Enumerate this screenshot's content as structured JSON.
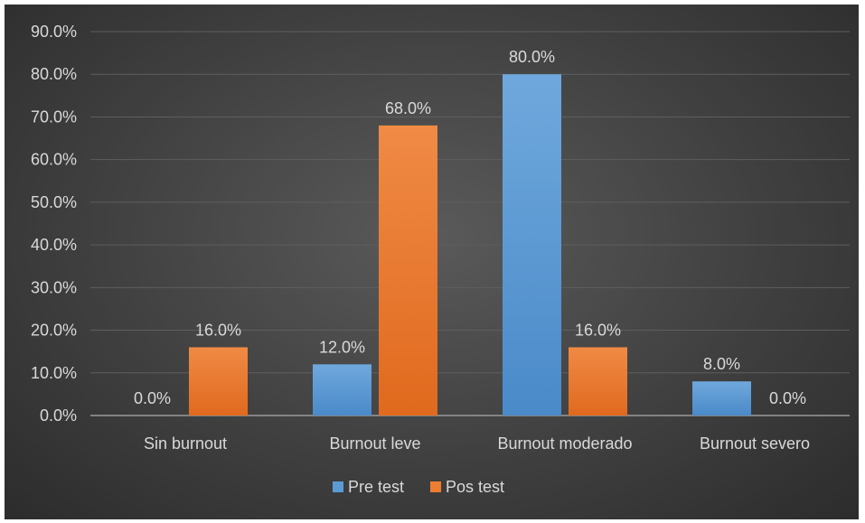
{
  "chart_data": {
    "type": "bar",
    "categories": [
      "Sin burnout",
      "Burnout leve",
      "Burnout moderado",
      "Burnout severo"
    ],
    "series": [
      {
        "name": "Pre test",
        "values": [
          0.0,
          12.0,
          80.0,
          8.0
        ],
        "color": "#5b9bd5",
        "data_labels": [
          "0.0%",
          "12.0%",
          "80.0%",
          "8.0%"
        ]
      },
      {
        "name": "Pos test",
        "values": [
          16.0,
          68.0,
          16.0,
          0.0
        ],
        "color": "#ed7d31",
        "data_labels": [
          "16.0%",
          "68.0%",
          "16.0%",
          "0.0%"
        ]
      }
    ],
    "y_ticks": [
      "0.0%",
      "10.0%",
      "20.0%",
      "30.0%",
      "40.0%",
      "50.0%",
      "60.0%",
      "70.0%",
      "80.0%",
      "90.0%"
    ],
    "ylim": [
      0,
      90
    ],
    "grid": true,
    "legend_position": "bottom",
    "title": "",
    "xlabel": "",
    "ylabel": ""
  }
}
